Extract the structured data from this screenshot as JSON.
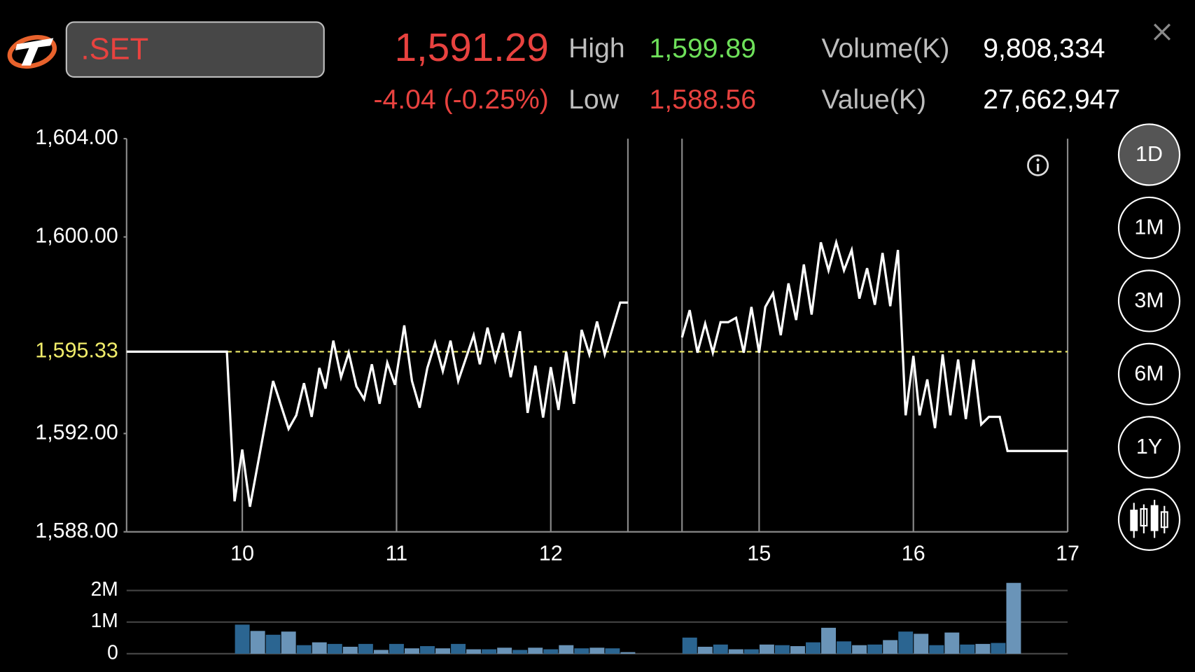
{
  "header": {
    "symbol": ".SET",
    "last": "1,591.29",
    "change": "-4.04 (-0.25%)",
    "high_label": "High",
    "high": "1,599.89",
    "low_label": "Low",
    "low": "1,588.56",
    "volume_label": "Volume(K)",
    "volume": "9,808,334",
    "value_label": "Value(K)",
    "value": "27,662,947"
  },
  "periods": [
    "1D",
    "1M",
    "3M",
    "6M",
    "1Y"
  ],
  "active_period": 0,
  "chart_data": [
    {
      "type": "line",
      "xlim": [
        9.25,
        17
      ],
      "sessions": [
        [
          9.25,
          12.5
        ],
        [
          14.5,
          17
        ]
      ],
      "xticks": [
        10,
        11,
        12,
        15,
        16,
        17
      ],
      "ylim": [
        1588,
        1604
      ],
      "yticks": [
        {
          "value": 1588,
          "label": "1,588.00"
        },
        {
          "value": 1592,
          "label": "1,592.00"
        },
        {
          "value": 1600,
          "label": "1,600.00"
        },
        {
          "value": 1604,
          "label": "1,604.00"
        }
      ],
      "reference_line": {
        "value": 1595.33,
        "label": "1,595.33",
        "color": "#f0ec6a"
      },
      "series": [
        {
          "color": "#ffffff",
          "x": [
            9.25,
            9.9,
            9.95,
            10,
            10.05,
            10.2,
            10.3,
            10.35,
            10.4,
            10.45,
            10.5,
            10.54,
            10.59,
            10.64,
            10.69,
            10.74,
            10.79,
            10.84,
            10.89,
            10.94,
            10.99,
            11.05,
            11.1,
            11.15,
            11.2,
            11.25,
            11.3,
            11.35,
            11.4,
            11.45,
            11.5,
            11.54,
            11.59,
            11.64,
            11.69,
            11.74,
            11.8,
            11.85,
            11.9,
            11.95,
            12,
            12.05,
            12.1,
            12.15,
            12.2,
            12.25,
            12.3,
            12.35,
            12.45,
            12.5
          ],
          "values": [
            1595.33,
            1595.33,
            1589.24,
            1591.35,
            1589.02,
            1594.14,
            1592.19,
            1592.74,
            1594.05,
            1592.68,
            1594.67,
            1593.83,
            1595.78,
            1594.29,
            1595.29,
            1593.92,
            1593.4,
            1594.82,
            1593.21,
            1594.88,
            1593.98,
            1596.4,
            1594.14,
            1593.05,
            1594.67,
            1595.69,
            1594.54,
            1595.78,
            1594.14,
            1595.07,
            1596.0,
            1594.82,
            1596.31,
            1594.98,
            1596.09,
            1594.29,
            1596.16,
            1592.84,
            1594.76,
            1592.65,
            1594.7,
            1592.96,
            1595.32,
            1593.21,
            1596.22,
            1595.22,
            1596.56,
            1595.22,
            1597.33,
            1597.33
          ]
        },
        {
          "color": "#ffffff",
          "x": [
            14.5,
            14.55,
            14.6,
            14.65,
            14.7,
            14.75,
            14.8,
            14.85,
            14.9,
            14.95,
            15,
            15.04,
            15.09,
            15.14,
            15.19,
            15.24,
            15.29,
            15.34,
            15.4,
            15.45,
            15.5,
            15.55,
            15.6,
            15.65,
            15.7,
            15.75,
            15.8,
            15.85,
            15.9,
            15.95,
            16,
            16.04,
            16.09,
            16.14,
            16.19,
            16.24,
            16.29,
            16.34,
            16.39,
            16.44,
            16.49,
            16.56,
            16.61,
            17
          ],
          "values": [
            1595.91,
            1597.02,
            1595.29,
            1596.47,
            1595.29,
            1596.53,
            1596.53,
            1596.71,
            1595.29,
            1597.15,
            1595.29,
            1597.15,
            1597.71,
            1596.0,
            1598.11,
            1596.62,
            1598.88,
            1596.84,
            1599.78,
            1598.64,
            1599.78,
            1598.64,
            1599.47,
            1597.49,
            1598.73,
            1597.24,
            1599.35,
            1597.18,
            1599.47,
            1592.74,
            1595.16,
            1592.74,
            1594.2,
            1592.22,
            1595.22,
            1592.74,
            1595.01,
            1592.59,
            1595.01,
            1592.37,
            1592.68,
            1592.68,
            1591.29,
            1591.29
          ]
        }
      ]
    },
    {
      "type": "bar",
      "xlim": [
        9.25,
        17
      ],
      "sessions": [
        [
          9.25,
          12.5
        ],
        [
          14.5,
          17
        ]
      ],
      "ylim": [
        0,
        2300000
      ],
      "yticks": [
        0,
        {
          "value": 1000000,
          "label": "1M"
        },
        {
          "value": 2000000,
          "label": "2M"
        }
      ],
      "grid": true,
      "colors": [
        "#2b6591",
        "#6a94b8"
      ],
      "x": [
        10,
        10.1,
        10.2,
        10.3,
        10.4,
        10.5,
        10.6,
        10.7,
        10.8,
        10.9,
        11,
        11.1,
        11.2,
        11.3,
        11.4,
        11.5,
        11.6,
        11.7,
        11.8,
        11.9,
        12,
        12.1,
        12.2,
        12.3,
        12.4,
        12.5,
        14.55,
        14.65,
        14.75,
        14.85,
        14.95,
        15.05,
        15.15,
        15.25,
        15.35,
        15.45,
        15.55,
        15.65,
        15.75,
        15.85,
        15.95,
        16.05,
        16.15,
        16.25,
        16.35,
        16.45,
        16.55,
        16.65
      ],
      "values": [
        920000,
        720000,
        600000,
        700000,
        270000,
        360000,
        310000,
        220000,
        310000,
        120000,
        310000,
        170000,
        240000,
        170000,
        310000,
        140000,
        140000,
        190000,
        120000,
        190000,
        140000,
        270000,
        170000,
        190000,
        170000,
        50000,
        510000,
        220000,
        290000,
        140000,
        140000,
        290000,
        270000,
        240000,
        360000,
        820000,
        390000,
        270000,
        290000,
        430000,
        700000,
        630000,
        270000,
        670000,
        290000,
        310000,
        340000,
        2240000
      ]
    }
  ]
}
